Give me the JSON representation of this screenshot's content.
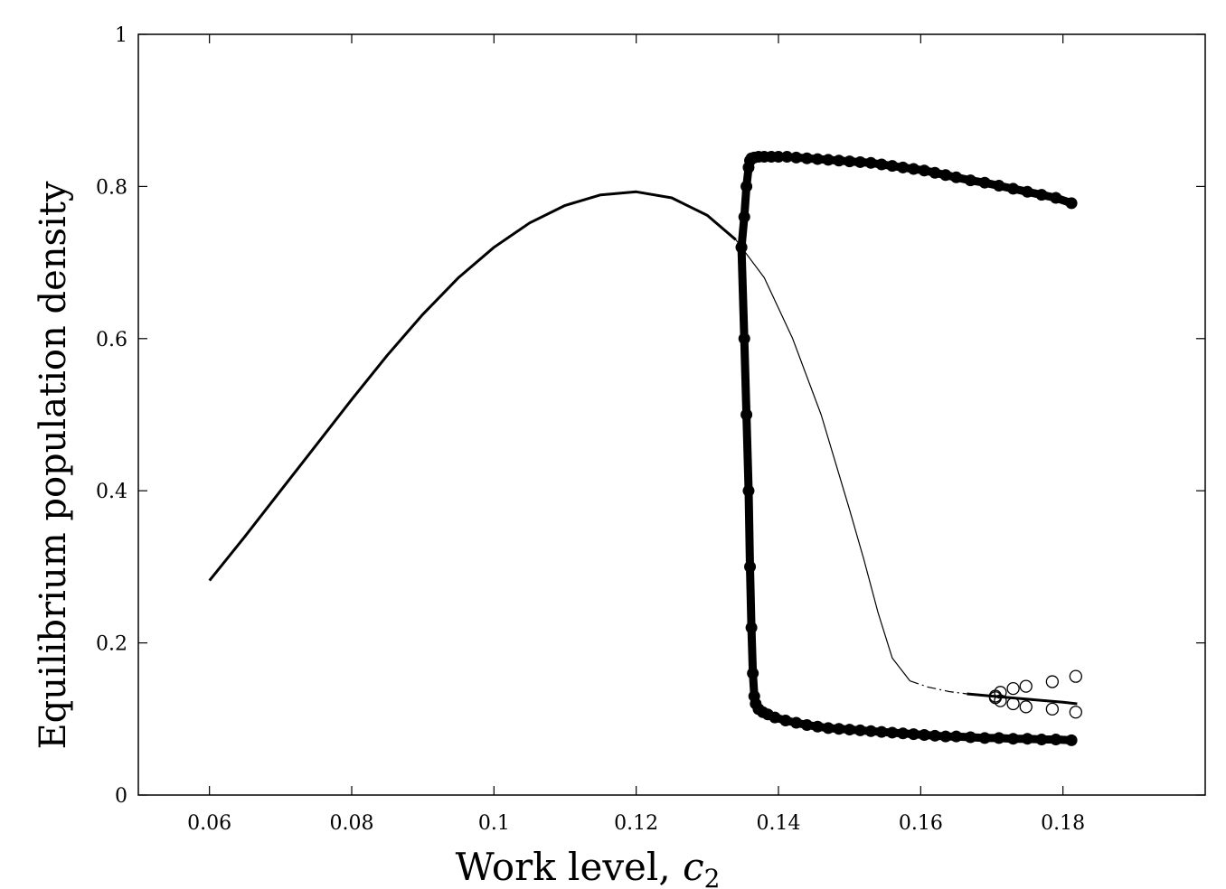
{
  "chart_data": {
    "type": "scatter",
    "title": "",
    "xlabel": "Work level, ",
    "xlabel_symbol": "c",
    "xlabel_subscript": "2",
    "ylabel": "Equilibrium population density",
    "xlim": [
      0.05,
      0.2
    ],
    "ylim": [
      0,
      1
    ],
    "x_ticks": [
      {
        "value": 0.06,
        "label": "0.06"
      },
      {
        "value": 0.08,
        "label": "0.08"
      },
      {
        "value": 0.1,
        "label": "0.1"
      },
      {
        "value": 0.12,
        "label": "0.12"
      },
      {
        "value": 0.14,
        "label": "0.14"
      },
      {
        "value": 0.16,
        "label": "0.16"
      },
      {
        "value": 0.18,
        "label": "0.18"
      }
    ],
    "y_ticks": [
      {
        "value": 0,
        "label": "0"
      },
      {
        "value": 0.2,
        "label": "0.2"
      },
      {
        "value": 0.4,
        "label": "0.4"
      },
      {
        "value": 0.6,
        "label": "0.6"
      },
      {
        "value": 0.8,
        "label": "0.8"
      },
      {
        "value": 1,
        "label": "1"
      }
    ],
    "grid": false,
    "legend": "none",
    "series": [
      {
        "style": "thick-line",
        "x": [
          0.06,
          0.065,
          0.07,
          0.075,
          0.08,
          0.085,
          0.09,
          0.095,
          0.1,
          0.105,
          0.11,
          0.115,
          0.12,
          0.125,
          0.13,
          0.134
        ],
        "y": [
          0.282,
          0.34,
          0.4,
          0.46,
          0.52,
          0.578,
          0.632,
          0.68,
          0.72,
          0.752,
          0.775,
          0.789,
          0.793,
          0.785,
          0.762,
          0.73
        ]
      },
      {
        "style": "thin-line",
        "x": [
          0.134,
          0.138,
          0.142,
          0.146,
          0.15,
          0.152,
          0.154,
          0.156,
          0.1585
        ],
        "y": [
          0.73,
          0.68,
          0.6,
          0.5,
          0.375,
          0.31,
          0.24,
          0.18,
          0.15
        ]
      },
      {
        "style": "dash-dot-line",
        "x": [
          0.1585,
          0.161,
          0.164,
          0.1665
        ],
        "y": [
          0.15,
          0.142,
          0.136,
          0.133
        ]
      },
      {
        "style": "thick-line",
        "x": [
          0.1665,
          0.17,
          0.175,
          0.18,
          0.182
        ],
        "y": [
          0.133,
          0.13,
          0.126,
          0.122,
          0.12
        ]
      },
      {
        "style": "filled-dots",
        "x": [
          0.1348,
          0.1352,
          0.1355,
          0.1358,
          0.136,
          0.1362,
          0.1364,
          0.1366,
          0.1368,
          0.1372,
          0.1378,
          0.1385,
          0.1395,
          0.141,
          0.1425,
          0.144,
          0.1455,
          0.147,
          0.1485,
          0.15,
          0.1515,
          0.153,
          0.1545,
          0.156,
          0.1575,
          0.159,
          0.1605,
          0.162,
          0.1635,
          0.165,
          0.167,
          0.169,
          0.171,
          0.173,
          0.175,
          0.177,
          0.179,
          0.1812
        ],
        "y": [
          0.72,
          0.6,
          0.5,
          0.4,
          0.3,
          0.22,
          0.16,
          0.13,
          0.12,
          0.113,
          0.109,
          0.106,
          0.102,
          0.098,
          0.095,
          0.092,
          0.09,
          0.088,
          0.087,
          0.086,
          0.085,
          0.084,
          0.083,
          0.082,
          0.081,
          0.08,
          0.079,
          0.078,
          0.077,
          0.077,
          0.076,
          0.075,
          0.075,
          0.074,
          0.074,
          0.073,
          0.073,
          0.072
        ]
      },
      {
        "style": "filled-dots",
        "x": [
          0.1348,
          0.1352,
          0.1355,
          0.1358,
          0.136,
          0.1362,
          0.1366,
          0.1372,
          0.138,
          0.139,
          0.14,
          0.1412,
          0.1425,
          0.144,
          0.1455,
          0.147,
          0.1485,
          0.15,
          0.1515,
          0.153,
          0.1545,
          0.156,
          0.1575,
          0.159,
          0.1605,
          0.162,
          0.1635,
          0.165,
          0.167,
          0.169,
          0.171,
          0.173,
          0.175,
          0.177,
          0.179,
          0.1812
        ],
        "y": [
          0.72,
          0.76,
          0.8,
          0.825,
          0.834,
          0.837,
          0.838,
          0.839,
          0.839,
          0.839,
          0.839,
          0.839,
          0.838,
          0.837,
          0.836,
          0.835,
          0.834,
          0.833,
          0.832,
          0.831,
          0.829,
          0.827,
          0.825,
          0.823,
          0.821,
          0.818,
          0.815,
          0.812,
          0.808,
          0.805,
          0.801,
          0.797,
          0.793,
          0.789,
          0.785,
          0.778
        ]
      },
      {
        "style": "open-circles",
        "x": [
          0.1705,
          0.1712,
          0.173,
          0.1748,
          0.1785,
          0.1818,
          0.1705,
          0.1712,
          0.173,
          0.1748,
          0.1785,
          0.1818
        ],
        "y": [
          0.13,
          0.135,
          0.14,
          0.143,
          0.149,
          0.156,
          0.128,
          0.124,
          0.12,
          0.116,
          0.113,
          0.109
        ]
      }
    ]
  }
}
